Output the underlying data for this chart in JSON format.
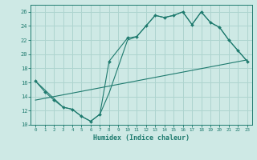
{
  "xlabel": "Humidex (Indice chaleur)",
  "bg_color": "#cee9e5",
  "grid_color": "#aed4cf",
  "line_color": "#1e7a6e",
  "xlim": [
    -0.5,
    23.5
  ],
  "ylim": [
    10,
    27
  ],
  "xticks": [
    0,
    1,
    2,
    3,
    4,
    5,
    6,
    7,
    8,
    9,
    10,
    11,
    12,
    13,
    14,
    15,
    16,
    17,
    18,
    19,
    20,
    21,
    22,
    23
  ],
  "yticks": [
    10,
    12,
    14,
    16,
    18,
    20,
    22,
    24,
    26
  ],
  "line1_x": [
    0,
    1,
    2,
    3,
    4,
    5,
    6,
    7,
    8,
    10,
    11,
    12,
    13,
    14,
    15,
    16,
    17,
    18,
    19,
    20,
    21,
    22,
    23
  ],
  "line1_y": [
    16.2,
    14.7,
    13.5,
    12.5,
    12.2,
    11.2,
    10.5,
    11.5,
    19.0,
    22.3,
    22.5,
    24.0,
    25.5,
    25.2,
    25.5,
    26.0,
    24.2,
    26.0,
    24.5,
    23.8,
    22.0,
    20.5,
    19.0
  ],
  "line2_x": [
    0,
    3,
    4,
    5,
    6,
    7,
    8,
    10,
    11,
    12,
    13,
    14,
    15,
    16,
    17,
    18,
    19,
    20,
    21,
    22,
    23
  ],
  "line2_y": [
    16.2,
    12.5,
    12.2,
    11.2,
    10.5,
    11.5,
    14.5,
    22.0,
    22.5,
    24.0,
    25.5,
    25.2,
    25.5,
    26.0,
    24.2,
    26.0,
    24.5,
    23.8,
    22.0,
    20.5,
    19.0
  ],
  "line3_x": [
    0,
    23
  ],
  "line3_y": [
    13.5,
    19.2
  ]
}
